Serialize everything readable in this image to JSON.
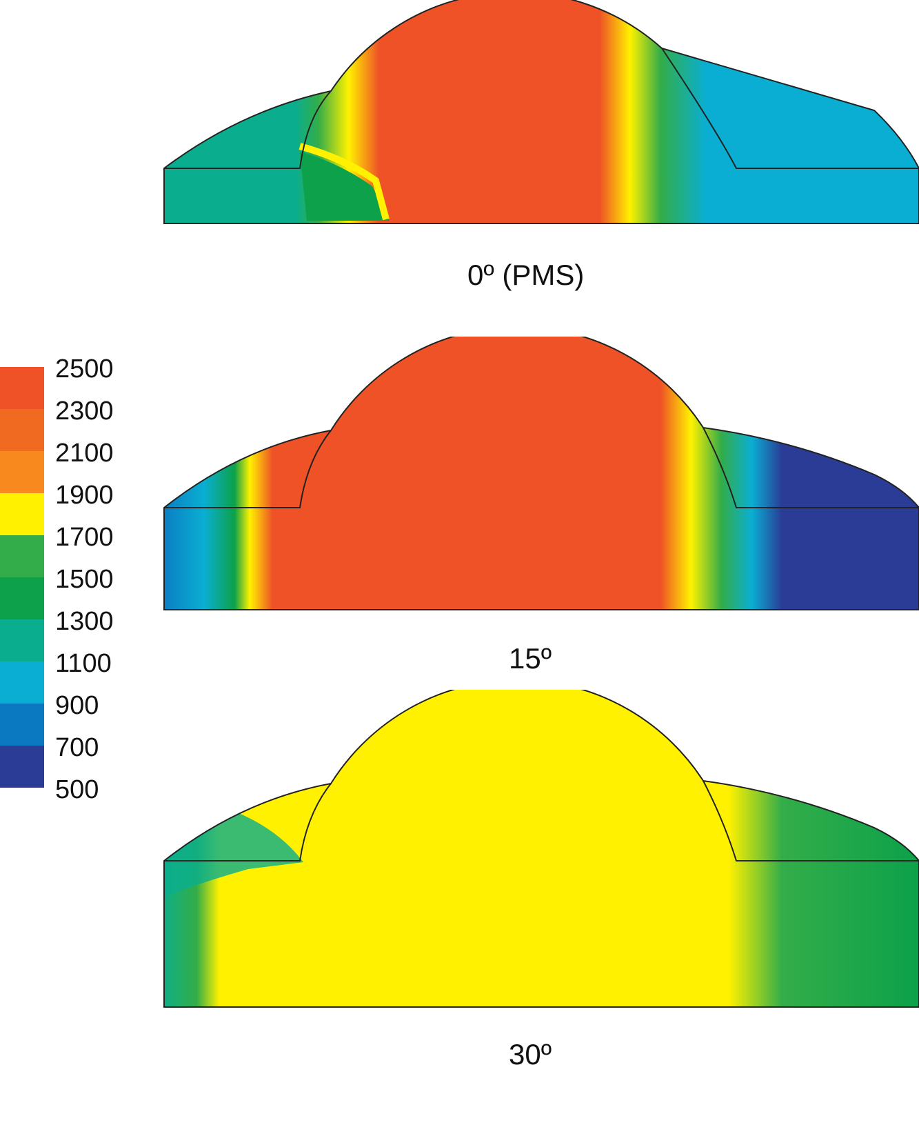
{
  "legend": {
    "labels": [
      "2500",
      "2300",
      "2100",
      "1900",
      "1700",
      "1500",
      "1300",
      "1100",
      "900",
      "700",
      "500"
    ],
    "colors": [
      "#ee5226",
      "#f16a22",
      "#f7891f",
      "#fff100",
      "#33ad49",
      "#0ca14a",
      "#0aae8e",
      "#0aaed2",
      "#0b79c2",
      "#2a3c96"
    ]
  },
  "panels": [
    {
      "caption": "0º (PMS)"
    },
    {
      "caption": "15º"
    },
    {
      "caption": "30º"
    }
  ],
  "palette": {
    "red": "#ee5226",
    "yellow": "#fff100",
    "green": "#0ca14a",
    "teal": "#0aae8e",
    "cyan": "#0aaed2",
    "blue": "#0b79c2",
    "navy": "#2a3c96"
  }
}
